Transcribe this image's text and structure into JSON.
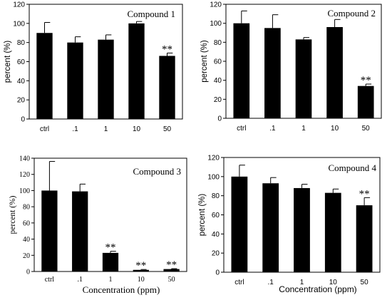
{
  "chart_data": [
    {
      "type": "bar",
      "title": "Compound 1",
      "ylabel": "percent (%)",
      "xlabel": "",
      "categories": [
        "ctrl",
        ".1",
        "1",
        "10",
        "50"
      ],
      "values": [
        90,
        80,
        83,
        100,
        66
      ],
      "errors": [
        11,
        6,
        5,
        2,
        3
      ],
      "annotations": [
        "",
        "",
        "",
        "",
        "**"
      ],
      "ylim": [
        0,
        120
      ],
      "yticks": [
        "0",
        "20",
        "40",
        "60",
        "80",
        "100",
        "120"
      ],
      "font": "sans",
      "bar_color": "#000000"
    },
    {
      "type": "bar",
      "title": "Compound 2",
      "ylabel": "percent (%)",
      "xlabel": "",
      "categories": [
        "ctrl",
        ".1",
        "1",
        "10",
        "50"
      ],
      "values": [
        100,
        95,
        83,
        96,
        34
      ],
      "errors": [
        13,
        14,
        2,
        8,
        2
      ],
      "annotations": [
        "",
        "",
        "",
        "",
        "**"
      ],
      "ylim": [
        0,
        120
      ],
      "yticks": [
        "0",
        "20",
        "40",
        "60",
        "80",
        "100",
        "120"
      ],
      "font": "sans",
      "bar_color": "#000000"
    },
    {
      "type": "bar",
      "title": "Compound 3",
      "ylabel": "percent (%)",
      "xlabel": "Concentration (ppm)",
      "categories": [
        "ctrl",
        ".1",
        "1",
        "10",
        "50"
      ],
      "values": [
        100,
        99,
        23,
        2,
        3
      ],
      "errors": [
        36,
        9,
        2,
        0.5,
        0.5
      ],
      "annotations": [
        "",
        "",
        "**",
        "**",
        "**"
      ],
      "ylim": [
        0,
        140
      ],
      "yticks": [
        "0",
        "20",
        "40",
        "60",
        "80",
        "100",
        "120",
        "140"
      ],
      "font": "serif",
      "bar_color": "#000000"
    },
    {
      "type": "bar",
      "title": "Compound 4",
      "ylabel": "percent (%)",
      "xlabel": "Concentration (ppm)",
      "categories": [
        "ctrl",
        ".1",
        "1",
        "10",
        "50"
      ],
      "values": [
        100,
        93,
        88,
        83,
        70
      ],
      "errors": [
        12,
        6,
        4,
        4,
        8
      ],
      "annotations": [
        "",
        "",
        "",
        "",
        "**"
      ],
      "ylim": [
        0,
        120
      ],
      "yticks": [
        "0",
        "20",
        "40",
        "60",
        "80",
        "100",
        "120"
      ],
      "font": "sans",
      "bar_color": "#000000"
    }
  ]
}
